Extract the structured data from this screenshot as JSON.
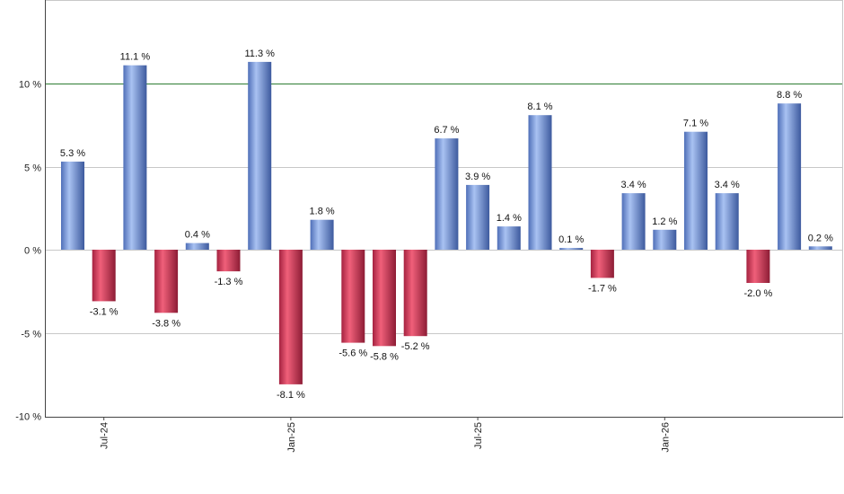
{
  "chart_data": {
    "type": "bar",
    "months": [
      "2024-06",
      "2024-07",
      "2024-08",
      "2024-09",
      "2024-10",
      "2024-11",
      "2024-12",
      "2025-01",
      "2025-02",
      "2025-03",
      "2025-04",
      "2025-05",
      "2025-06",
      "2025-07",
      "2025-08",
      "2025-09",
      "2025-10",
      "2025-11",
      "2025-12",
      "2026-01",
      "2026-02",
      "2026-03",
      "2026-04",
      "2026-05",
      "2026-06"
    ],
    "values": [
      5.3,
      -3.1,
      11.1,
      -3.8,
      0.4,
      -1.3,
      11.3,
      -8.1,
      1.8,
      -5.6,
      -5.8,
      -5.2,
      6.7,
      3.9,
      1.4,
      8.1,
      0.1,
      -1.7,
      3.4,
      1.2,
      7.1,
      3.4,
      -2.0,
      8.8,
      0.2
    ],
    "labels": [
      "5.3 %",
      "-3.1 %",
      "11.1 %",
      "-3.8 %",
      "0.4 %",
      "-1.3 %",
      "11.3 %",
      "-8.1 %",
      "1.8 %",
      "-5.6 %",
      "-5.8 %",
      "-5.2 %",
      "6.7 %",
      "3.9 %",
      "1.4 %",
      "8.1 %",
      "0.1 %",
      "-1.7 %",
      "3.4 %",
      "1.2 %",
      "7.1 %",
      "3.4 %",
      "-2.0 %",
      "8.8 %",
      "0.2 %"
    ],
    "ylim": [
      -10,
      15
    ],
    "yticks": [
      {
        "value": 10,
        "label": "10 %"
      },
      {
        "value": 5,
        "label": "5 %"
      },
      {
        "value": 0,
        "label": "0 %"
      },
      {
        "value": -5,
        "label": "-5 %"
      },
      {
        "value": -10,
        "label": "-10 %"
      }
    ],
    "xticks": [
      {
        "index": 1,
        "label": "Jul-24"
      },
      {
        "index": 7,
        "label": "Jan-25"
      },
      {
        "index": 13,
        "label": "Jul-25"
      },
      {
        "index": 19,
        "label": "Jan-26"
      }
    ],
    "reference_line": 10,
    "grid": true,
    "colors": {
      "positive": "#6f8fd8",
      "negative": "#c8354f",
      "reference_line": "#2e7d32",
      "grid": "#c8c8c8",
      "axis": "#444444"
    }
  }
}
